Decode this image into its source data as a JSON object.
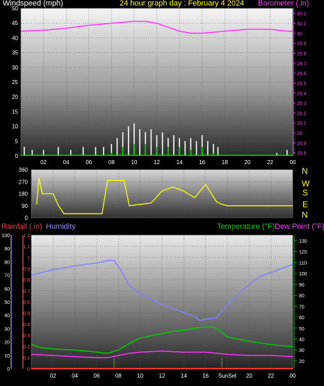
{
  "header": {
    "left": "Windspeed (mph)",
    "center": "24 hour graph day : February 4 2024",
    "right": "Barometer (.in)"
  },
  "mid_panel": {
    "direction_labels": [
      "N",
      "W",
      "S",
      "E",
      "N"
    ]
  },
  "bottom_header": {
    "rainfall": "Rainfall (.in)",
    "humidity": "Humidity",
    "temperature": "Temperature (°F)",
    "dewpoint": "Dew Point (°F)"
  },
  "colors": {
    "wind_gust": "#ffffff",
    "wind_avg": "#00cc00",
    "barometer": "#ff33ff",
    "direction": "#ffff00",
    "humidity": "#8080ff",
    "temperature": "#00cc00",
    "dewpoint": "#ff33ff",
    "rainfall": "#ff3333",
    "rain_axis": "#ff5555",
    "humidity_axis": "#8888ff",
    "temp_axis": "#00cc00",
    "baro_axis": "#ff33ff"
  },
  "chart_data": [
    {
      "type": "line",
      "panel": "wind-barometer",
      "x_ticks": [
        "02",
        "04",
        "06",
        "08",
        "10",
        "12",
        "14",
        "16",
        "18",
        "20",
        "22",
        "00"
      ],
      "y_left_ticks": [
        "0",
        "5",
        "10",
        "15",
        "20",
        "25",
        "30",
        "35",
        "40",
        "45",
        "50"
      ],
      "y_left_range": [
        0,
        50
      ],
      "y_right_ticks": [
        "28.8",
        "28.9",
        "29",
        "29.1",
        "29.2",
        "29.3",
        "29.4",
        "29.5",
        "29.6",
        "29.7",
        "29.8",
        "29.9",
        "30",
        "30.1",
        "30.2"
      ],
      "y_right_range": [
        28.77,
        30.25
      ],
      "series": [
        {
          "name": "Barometer (.in)",
          "axis": "right",
          "x": [
            0,
            2,
            4,
            6,
            8,
            10,
            11,
            12,
            13,
            14,
            15,
            16,
            17,
            18,
            20,
            22,
            23.5,
            24
          ],
          "y": [
            30.02,
            30.03,
            30.05,
            30.08,
            30.1,
            30.12,
            30.12,
            30.1,
            30.06,
            30.02,
            30.0,
            30.0,
            30.01,
            30.02,
            30.04,
            30.04,
            30.02,
            30.02
          ]
        }
      ],
      "wind_gust_bursts": [
        {
          "x": [
            0.3,
            1.0,
            2.0,
            3.3,
            4.4,
            5.5,
            6.6,
            7.3,
            8.0,
            8.5,
            9.0,
            9.5,
            10.0,
            10.5,
            11.0,
            11.5,
            12.0,
            12.5,
            13.0,
            13.5,
            14.0,
            14.5,
            15.0,
            15.5,
            16.0,
            16.5,
            17.0,
            17.4,
            22.6,
            23.5
          ],
          "y": [
            3,
            2,
            2,
            3,
            2,
            3,
            3,
            3,
            4,
            6,
            8,
            10,
            11,
            9,
            8,
            9,
            7,
            8,
            6,
            7,
            6,
            5,
            6,
            5,
            7,
            5,
            4,
            3,
            1,
            2
          ]
        }
      ],
      "wind_avg_bursts": [
        {
          "x": [
            8.0,
            9.0,
            10.0,
            11.0,
            12.0,
            13.0,
            14.0,
            15.0,
            16.0,
            17.0
          ],
          "y": [
            1,
            3,
            4,
            4,
            3,
            3,
            3,
            2,
            3,
            1
          ]
        }
      ]
    },
    {
      "type": "scatter",
      "panel": "wind-direction",
      "y_ticks": [
        "0",
        "90",
        "180",
        "270",
        "360"
      ],
      "y_range": [
        0,
        360
      ],
      "series": [
        {
          "name": "Wind direction",
          "x": [
            0.5,
            0.7,
            1.0,
            1.5,
            2.0,
            2.5,
            3.0,
            4.0,
            5.0,
            6.0,
            6.5,
            7.0,
            7.5,
            8.0,
            8.5,
            9.0,
            10.0,
            11.0,
            12.0,
            13.0,
            14.0,
            15.0,
            16.0,
            17.0,
            17.5,
            18.0,
            20.0,
            22.0,
            24.0
          ],
          "y": [
            100,
            300,
            180,
            180,
            180,
            90,
            30,
            30,
            30,
            30,
            30,
            280,
            280,
            280,
            280,
            90,
            100,
            110,
            200,
            230,
            200,
            150,
            250,
            120,
            100,
            90,
            90,
            90,
            90
          ]
        }
      ]
    },
    {
      "type": "line",
      "panel": "temperature-humidity",
      "x_ticks": [
        "02",
        "04",
        "06",
        "08",
        "10",
        "12",
        "14",
        "16",
        "SunSet",
        "20",
        "22",
        "00"
      ],
      "y_left_ticks": [
        "0",
        "10",
        "20",
        "30",
        "40",
        "50",
        "60",
        "70",
        "80",
        "90",
        "100"
      ],
      "y_left_range": [
        0,
        100
      ],
      "y_rain_ticks": [
        "0",
        "0.1",
        "0.2",
        "0.3",
        "0.4",
        "0.5",
        "0.6",
        "0.7",
        "0.8",
        "0.9",
        "1",
        "1.1",
        "1.2"
      ],
      "y_rain_range": [
        0,
        1.2
      ],
      "y_right_ticks": [
        "20",
        "30",
        "40",
        "50",
        "60",
        "70",
        "80",
        "90",
        "100",
        "110",
        "120",
        "130"
      ],
      "y_right_range": [
        13,
        135
      ],
      "series": [
        {
          "name": "Humidity",
          "axis": "left",
          "x": [
            0,
            2,
            4,
            6,
            7,
            7.6,
            8.2,
            9,
            10,
            11,
            12,
            13,
            14,
            15,
            15.5,
            16,
            17,
            17.5,
            18,
            19,
            20,
            21,
            22,
            23,
            24
          ],
          "y": [
            70,
            74,
            77,
            79,
            81,
            81,
            74,
            62,
            56,
            52,
            48,
            45,
            42,
            39,
            36,
            37,
            38,
            43,
            48,
            56,
            63,
            69,
            72,
            75,
            78
          ]
        },
        {
          "name": "Temperature (°F)",
          "axis": "right",
          "x": [
            0,
            1,
            2,
            4,
            6,
            7,
            8,
            9,
            10,
            11,
            12,
            13,
            14,
            15,
            16,
            16.5,
            17,
            17.5,
            18,
            19,
            20,
            22,
            24
          ],
          "y": [
            35,
            32,
            31,
            30,
            28,
            27,
            30,
            36,
            41,
            43,
            45,
            47,
            48,
            50,
            51,
            51,
            50,
            46,
            42,
            40,
            38,
            35,
            33
          ]
        },
        {
          "name": "Dew Point (°F)",
          "axis": "right",
          "x": [
            0,
            2,
            4,
            6,
            7,
            8,
            9,
            10,
            12,
            14,
            16,
            18,
            20,
            22,
            24
          ],
          "y": [
            26,
            25,
            24,
            23,
            23,
            25,
            27,
            28,
            29,
            28,
            28,
            26,
            25,
            25,
            24
          ]
        },
        {
          "name": "Rainfall (.in)",
          "axis": "rain",
          "x": [
            0,
            24
          ],
          "y": [
            0,
            0
          ]
        }
      ],
      "markers": [
        7.6,
        17.5
      ]
    }
  ]
}
